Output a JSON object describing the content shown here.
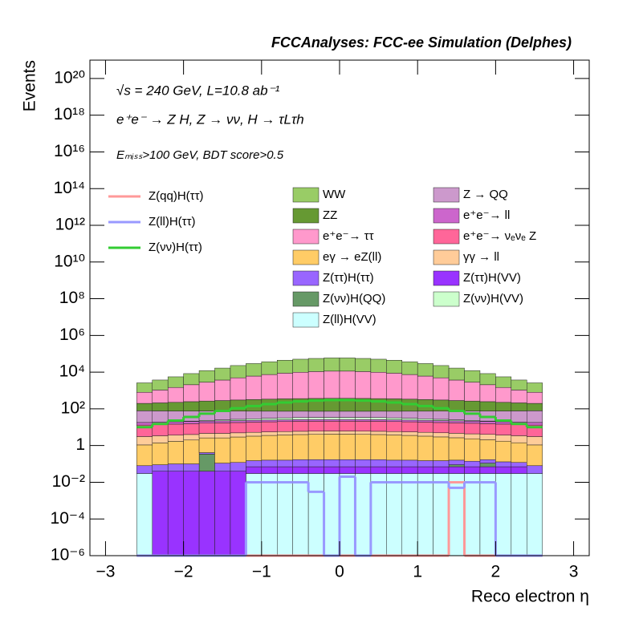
{
  "chart_data": {
    "type": "stacked-histogram",
    "title": "FCCAnalyses: FCC-ee Simulation (Delphes)",
    "annotations": [
      "√s = 240 GeV, L=10.8 ab⁻¹",
      "e⁺e⁻ → Z H, Z → νν, H → τLτh",
      "Eₘᵢₛₛ>100 GeV, BDT score>0.5"
    ],
    "x_label": "Reco electron η",
    "y_label": "Events",
    "log_y": true,
    "xlim": [
      -3.2,
      3.2
    ],
    "ylim": [
      1e-06,
      1e+21
    ],
    "xticks": [
      {
        "value": -3,
        "label": "−3"
      },
      {
        "value": -2,
        "label": "−2"
      },
      {
        "value": -1,
        "label": "−1"
      },
      0,
      1,
      2,
      3
    ],
    "yticks": [
      {
        "value": 1e-06,
        "label": "10⁻⁶"
      },
      {
        "value": 0.0001,
        "label": "10⁻⁴"
      },
      {
        "value": 0.01,
        "label": "10⁻²"
      },
      1,
      {
        "value": 100,
        "label": "10²"
      },
      {
        "value": 10000.0,
        "label": "10⁴"
      },
      {
        "value": 1000000.0,
        "label": "10⁶"
      },
      {
        "value": 100000000.0,
        "label": "10⁸"
      },
      {
        "value": 10000000000.0,
        "label": "10¹⁰"
      },
      {
        "value": 1000000000000.0,
        "label": "10¹²"
      },
      {
        "value": 100000000000000.0,
        "label": "10¹⁴"
      },
      {
        "value": 1e+16,
        "label": "10¹⁶"
      },
      {
        "value": 1e+18,
        "label": "10¹⁸"
      },
      {
        "value": 1e+20,
        "label": "10²⁰"
      }
    ],
    "bins": [
      -2.6,
      -2.4,
      -2.2,
      -2.0,
      -1.8,
      -1.6,
      -1.4,
      -1.2,
      -1.0,
      -0.8,
      -0.6,
      -0.4,
      -0.2,
      0,
      0.2,
      0.4,
      0.6,
      0.8,
      1.0,
      1.2,
      1.4,
      1.6,
      1.8,
      2.0,
      2.2,
      2.4,
      2.6
    ],
    "series": [
      {
        "name": "WW",
        "color": "#99cc66",
        "style": "fill",
        "values": [
          1800,
          2660,
          4090,
          6260,
          9300,
          12900,
          17900,
          23200,
          29400,
          35800,
          40900,
          45000,
          48000,
          48000,
          45000,
          40900,
          35800,
          29400,
          23200,
          17900,
          12900,
          9300,
          6260,
          4090,
          2660,
          1800
        ]
      },
      {
        "name": "ZZ",
        "color": "#669933",
        "style": "fill",
        "values": [
          120,
          134,
          150,
          171,
          190,
          208,
          228,
          245,
          262,
          276,
          286,
          295,
          300,
          300,
          295,
          286,
          276,
          262,
          245,
          228,
          208,
          190,
          171,
          150,
          134,
          120
        ]
      },
      {
        "name": "e⁺e⁻→ ττ",
        "color": "#ff99cc",
        "style": "fill",
        "values": [
          600,
          850,
          1240,
          1810,
          2570,
          3420,
          4600,
          5770,
          7060,
          8450,
          9490,
          10400,
          11000,
          11000,
          10400,
          9490,
          8450,
          7060,
          5770,
          4600,
          3420,
          2570,
          1810,
          1240,
          850,
          600
        ]
      },
      {
        "name": "eγ → eZ(ll)",
        "color": "#ffcc66",
        "style": "fill",
        "values": [
          1,
          1.3,
          1.6,
          1.9,
          2.2,
          2.5,
          2.8,
          3.1,
          3.4,
          3.6,
          3.8,
          3.9,
          4,
          4,
          3.9,
          3.8,
          3.6,
          3.4,
          3.1,
          2.8,
          2.5,
          2.2,
          1.9,
          1.6,
          1.3,
          1
        ]
      },
      {
        "name": "Z(ττ)H(ττ)",
        "color": "#9966ff",
        "style": "fill",
        "values": [
          0.05,
          0.05,
          0.06,
          0.06,
          0.07,
          0.07,
          0.08,
          0.08,
          0.09,
          0.09,
          0.1,
          0.1,
          0.1,
          0.1,
          0.1,
          0.1,
          0.09,
          0.09,
          0.08,
          0.08,
          0.07,
          0.07,
          0.06,
          0.06,
          0.05,
          0.05
        ]
      },
      {
        "name": "Z(νν)H(QQ)",
        "color": "#669966",
        "style": "fill",
        "values": [
          0,
          0,
          0,
          0,
          0.3,
          0,
          0,
          0,
          0,
          0,
          0,
          0,
          0,
          0,
          0,
          0,
          0,
          0,
          0,
          0,
          0.02,
          0,
          0.04,
          0,
          0,
          0
        ]
      },
      {
        "name": "Z(ll)H(VV)",
        "color": "#ccffff",
        "style": "fill",
        "values": [
          0.03,
          0,
          0,
          0,
          0,
          0,
          0,
          0.03,
          0.03,
          0.03,
          0.03,
          0.03,
          0.03,
          0.03,
          0.03,
          0.03,
          0.03,
          0.03,
          0.03,
          0.03,
          0.03,
          0.03,
          0.03,
          0.03,
          0.03,
          0.03
        ]
      },
      {
        "name": "Z → QQ",
        "color": "#cc99cc",
        "style": "fill",
        "values": [
          60,
          58,
          56,
          54,
          52,
          50,
          48,
          46,
          44,
          42,
          41,
          40,
          40,
          40,
          40,
          41,
          42,
          44,
          46,
          48,
          50,
          52,
          54,
          56,
          58,
          60
        ]
      },
      {
        "name": "e⁺e⁻→ ll",
        "color": "#cc66cc",
        "style": "fill",
        "values": [
          5,
          5,
          5,
          5,
          5,
          5,
          5,
          5,
          5,
          5,
          5,
          5,
          5,
          5,
          5,
          5,
          5,
          5,
          5,
          5,
          5,
          5,
          5,
          5,
          5,
          5
        ]
      },
      {
        "name": "e⁺e⁻→ νₑνₑ Z",
        "color": "#ff6699",
        "style": "fill",
        "values": [
          10,
          10.5,
          11,
          11.5,
          12,
          12.5,
          13,
          13.5,
          14,
          14.5,
          15,
          15,
          15,
          15,
          15,
          15,
          14.5,
          14,
          13.5,
          13,
          12.5,
          12,
          11.5,
          11,
          10.5,
          10
        ]
      },
      {
        "name": "γγ → ll",
        "color": "#ffcc99",
        "style": "fill",
        "values": [
          2,
          2,
          2,
          2,
          2,
          2,
          2,
          2,
          2,
          2,
          2,
          2,
          2,
          2,
          2,
          2,
          2,
          2,
          2,
          2,
          2,
          2,
          2,
          2,
          2,
          2
        ]
      },
      {
        "name": "Z(ττ)H(VV)",
        "color": "#9933ff",
        "style": "fill",
        "values": [
          0,
          0.04,
          0.04,
          0.04,
          0.04,
          0.04,
          0.04,
          0.04,
          0.04,
          0.04,
          0.04,
          0.04,
          0.04,
          0.04,
          0.04,
          0.04,
          0.04,
          0.04,
          0.04,
          0.04,
          0.04,
          0.04,
          0.04,
          0.04,
          0.04,
          0
        ]
      },
      {
        "name": "Z(νν)H(VV)",
        "color": "#ccffcc",
        "style": "fill",
        "values": [
          0,
          0,
          0,
          1,
          2,
          3,
          4,
          5,
          6,
          7,
          7.5,
          8,
          8,
          8,
          8,
          7.5,
          7,
          6,
          5,
          4,
          3,
          2,
          1,
          0,
          0,
          0
        ]
      },
      {
        "name": "Z(qq)H(ττ)",
        "color": "#ff9999",
        "style": "line",
        "values": [
          0,
          0,
          0,
          0,
          0,
          0,
          0,
          0,
          0,
          0,
          0,
          0,
          0,
          0,
          0,
          0,
          0,
          0,
          0,
          0,
          0.01,
          0,
          0,
          0,
          0,
          0
        ]
      },
      {
        "name": "Z(ll)H(ττ)",
        "color": "#9999ff",
        "style": "line",
        "values": [
          0,
          0,
          0,
          0,
          0,
          0,
          0,
          0.01,
          0.01,
          0.01,
          0.01,
          0.003,
          0,
          0.02,
          0,
          0.01,
          0.01,
          0.01,
          0.01,
          0.01,
          0.005,
          0.01,
          0.01,
          0,
          0,
          0
        ]
      },
      {
        "name": "Z(νν)H(ττ)",
        "color": "#33cc33",
        "style": "line",
        "values": [
          10,
          15,
          23,
          36,
          55,
          77,
          108,
          142,
          180,
          222,
          254,
          281,
          300,
          300,
          281,
          254,
          222,
          180,
          142,
          108,
          77,
          55,
          36,
          23,
          15,
          10
        ]
      }
    ]
  }
}
